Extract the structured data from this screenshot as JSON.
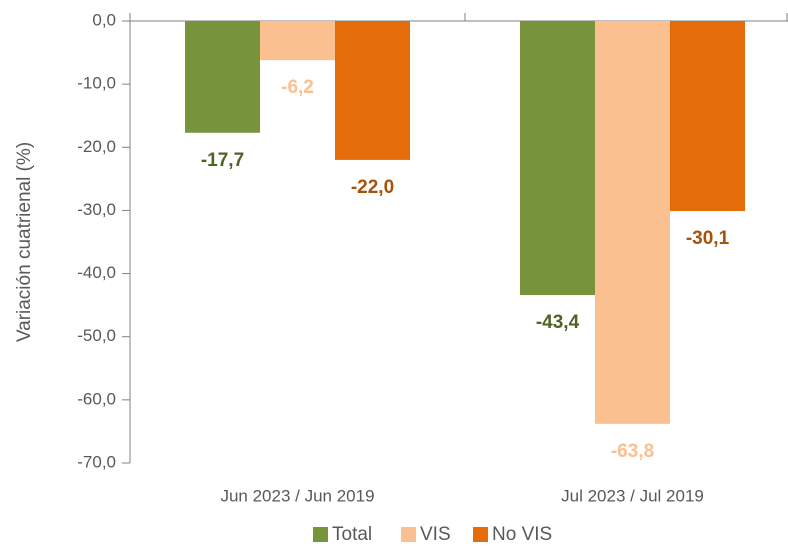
{
  "chart_data": {
    "type": "bar",
    "y_axis_label": "Variación cuatrienal (%)",
    "categories": [
      "Jun 2023 / Jun 2019",
      "Jul 2023 / Jul 2019"
    ],
    "series": [
      {
        "name": "Total",
        "color": "#77933c",
        "label_color": "#4f6228",
        "values": [
          -17.7,
          -43.4
        ],
        "value_labels": [
          "-17,7",
          "-43,4"
        ]
      },
      {
        "name": "VIS",
        "color": "#fac090",
        "label_color": "#fac090",
        "values": [
          -6.2,
          -63.8
        ],
        "value_labels": [
          "-6,2",
          "-63,8"
        ]
      },
      {
        "name": "No VIS",
        "color": "#e46c0a",
        "label_color": "#a6520c",
        "values": [
          -22.0,
          -30.1
        ],
        "value_labels": [
          "-22,0",
          "-30,1"
        ]
      }
    ],
    "ylim": [
      0,
      -70
    ],
    "yticks": [
      {
        "value": 0,
        "label": "0,0"
      },
      {
        "value": -10,
        "label": "-10,0"
      },
      {
        "value": -20,
        "label": "-20,0"
      },
      {
        "value": -30,
        "label": "-30,0"
      },
      {
        "value": -40,
        "label": "-40,0"
      },
      {
        "value": -50,
        "label": "-50,0"
      },
      {
        "value": -60,
        "label": "-60,0"
      },
      {
        "value": -70,
        "label": "-70,0"
      }
    ],
    "legend": "bottom"
  }
}
